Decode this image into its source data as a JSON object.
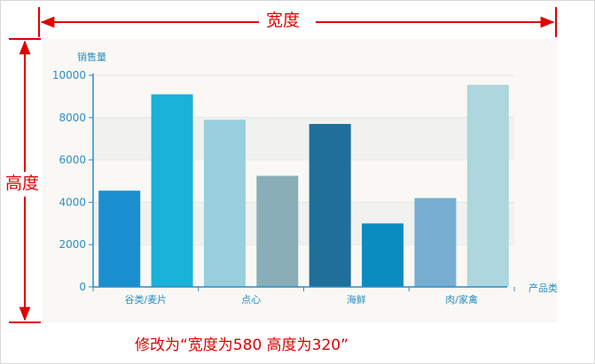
{
  "annotations": {
    "width_label": "宽度",
    "height_label": "高度",
    "caption": "修改为“宽度为580   高度为320”",
    "color": "#e00000"
  },
  "chart_data": {
    "type": "bar",
    "ylabel": "销售量",
    "xlabel": "产品类",
    "categories": [
      "谷类/麦片",
      "",
      "点心",
      "",
      "海鲜",
      "",
      "肉/家禽",
      ""
    ],
    "values": [
      4550,
      9100,
      7900,
      5250,
      7700,
      3000,
      4200,
      9550
    ],
    "colors": [
      "#1a8fd0",
      "#1ab2d8",
      "#97cfdd",
      "#89aeb8",
      "#1e6f9a",
      "#0a8cc0",
      "#77aed2",
      "#aed6de"
    ],
    "ylim": [
      0,
      10000
    ],
    "yticks": [
      0,
      2000,
      4000,
      6000,
      8000,
      10000
    ],
    "grid": true,
    "axis_color": "#2b8ec6"
  }
}
